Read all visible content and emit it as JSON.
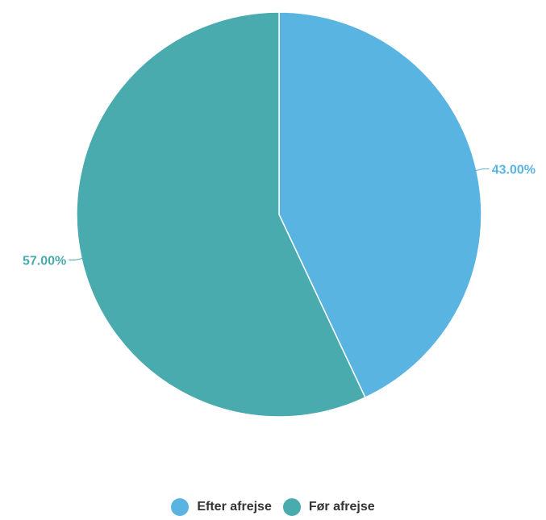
{
  "chart_data": {
    "type": "pie",
    "categories": [
      "Efter afrejse",
      "Før afrejse"
    ],
    "values": [
      43.0,
      57.0
    ],
    "value_labels": [
      "43.00%",
      "57.00%"
    ],
    "colors": [
      "#5ab4e2",
      "#4aabae"
    ],
    "title": "",
    "legend_position": "bottom-center",
    "start_angle_deg": 0,
    "direction": "clockwise"
  },
  "legend": {
    "items": [
      {
        "label": "Efter afrejse",
        "color": "#5ab4e2"
      },
      {
        "label": "Før afrejse",
        "color": "#4aabae"
      }
    ]
  }
}
